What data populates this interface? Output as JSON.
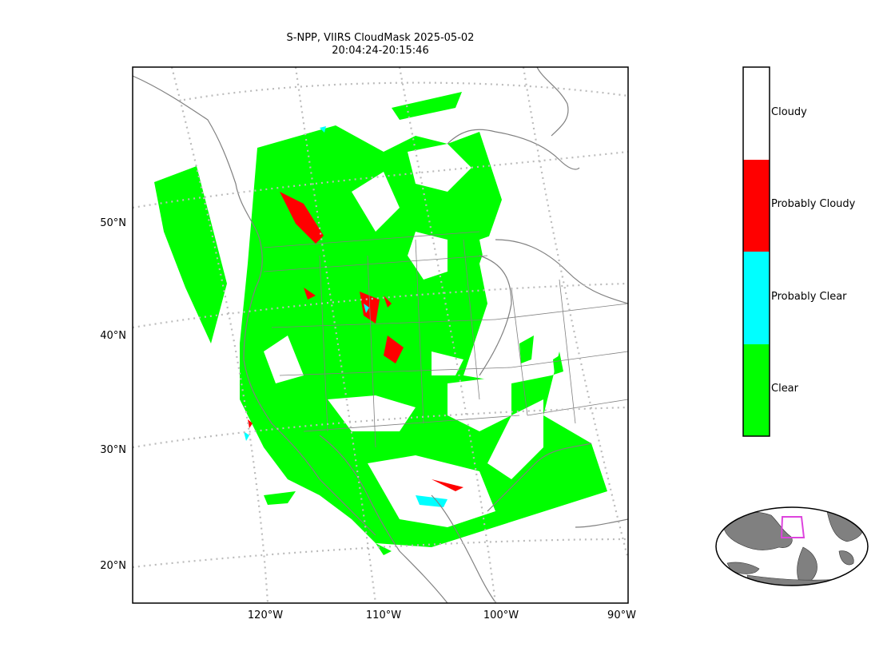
{
  "title": {
    "line1": "S-NPP, VIIRS CloudMask 2025-05-02",
    "line2": "20:04:24-20:15:46"
  },
  "map": {
    "projection": "lambert-conformal",
    "extent": {
      "lon_min": -130,
      "lon_max": -88,
      "lat_min": 17,
      "lat_max": 60
    },
    "lat_ticks": [
      "50°N",
      "40°N",
      "30°N",
      "20°N"
    ],
    "lon_ticks": [
      "120°W",
      "110°W",
      "100°W",
      "90°W"
    ],
    "gridlines": "dotted",
    "coastline_color": "#808080",
    "grid_color": "#bbbbbb"
  },
  "colorbar": {
    "categories": [
      {
        "label": "Cloudy",
        "color": "#ffffff"
      },
      {
        "label": "Probably Cloudy",
        "color": "#ff0000"
      },
      {
        "label": "Probably Clear",
        "color": "#00ffff"
      },
      {
        "label": "Clear",
        "color": "#00ff00"
      }
    ]
  },
  "inset": {
    "description_icon": "world-globe-icon",
    "land_color": "#808080",
    "box_color": "#dd44dd"
  }
}
